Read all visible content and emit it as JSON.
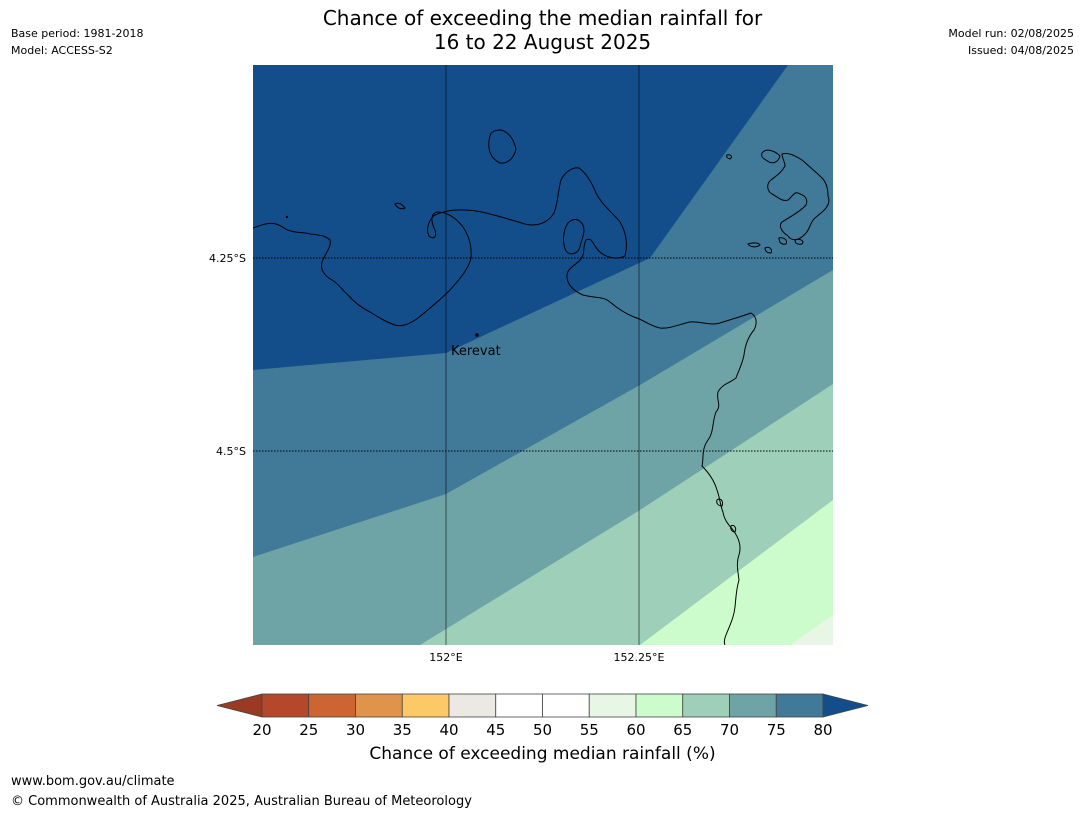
{
  "header": {
    "title_line1": "Chance of exceeding the median rainfall for",
    "title_line2": "16 to 22 August 2025",
    "base_period": "Base period: 1981-2018",
    "model": "Model: ACCESS-S2",
    "model_run": "Model run: 02/08/2025",
    "issued": "Issued: 04/08/2025"
  },
  "map": {
    "lat_labels": [
      "4.25°S",
      "4.5°S"
    ],
    "lon_labels": [
      "152°E",
      "152.25°E"
    ],
    "place_label": "Kerevat"
  },
  "colorbar": {
    "ticks": [
      "20",
      "25",
      "30",
      "35",
      "40",
      "45",
      "50",
      "55",
      "60",
      "65",
      "70",
      "75",
      "80"
    ],
    "label": "Chance of exceeding median rainfall (%)",
    "colors": {
      "under": "#9b3a22",
      "bins": [
        "#b5482a",
        "#cc6434",
        "#e0934a",
        "#fdc967",
        "#ece8e4",
        "#ffffff",
        "#ffffff",
        "#e8f6e6",
        "#ccfccc",
        "#9ecfb8",
        "#6fa4a6",
        "#417a98"
      ],
      "over": "#144e8a"
    }
  },
  "footer": {
    "url": "www.bom.gov.au/climate",
    "copyright": "© Commonwealth of Australia 2025, Australian Bureau of Meteorology"
  }
}
